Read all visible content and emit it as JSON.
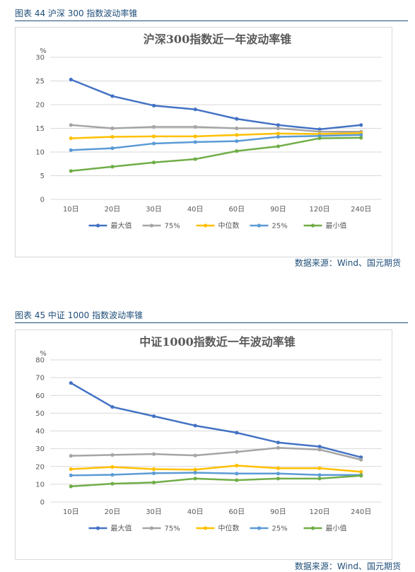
{
  "figures": [
    {
      "caption": "图表 44  沪深 300 指数波动率锥",
      "source": "数据来源：Wind、国元期货",
      "chart_data": {
        "type": "line",
        "title": "沪深300指数近一年波动率锥",
        "ylabel": "%",
        "xlabel": "",
        "categories": [
          "10日",
          "20日",
          "30日",
          "40日",
          "60日",
          "90日",
          "120日",
          "240日"
        ],
        "ylim": [
          0,
          30
        ],
        "yticks": [
          0,
          5,
          10,
          15,
          20,
          25,
          30
        ],
        "grid": true,
        "legend_position": "bottom",
        "series": [
          {
            "name": "最大值",
            "color": "#4472c4",
            "values": [
              25.3,
              21.8,
              19.8,
              19.0,
              17.0,
              15.7,
              14.8,
              15.7
            ]
          },
          {
            "name": "75%",
            "color": "#a5a5a5",
            "values": [
              15.7,
              15.0,
              15.3,
              15.3,
              15.0,
              15.0,
              14.3,
              14.3
            ]
          },
          {
            "name": "中位数",
            "color": "#ffc000",
            "values": [
              12.9,
              13.2,
              13.3,
              13.3,
              13.6,
              13.9,
              13.8,
              14.0
            ]
          },
          {
            "name": "25%",
            "color": "#5b9bd5",
            "values": [
              10.4,
              10.8,
              11.8,
              12.1,
              12.3,
              13.2,
              13.4,
              13.6
            ]
          },
          {
            "name": "最小值",
            "color": "#70ad47",
            "values": [
              6.0,
              6.9,
              7.8,
              8.5,
              10.2,
              11.2,
              12.9,
              13.0
            ]
          }
        ]
      }
    },
    {
      "caption": "图表 45  中证 1000 指数波动率锥",
      "source": "数据来源：Wind、国元期货",
      "chart_data": {
        "type": "line",
        "title": "中证1000指数近一年波动率锥",
        "ylabel": "%",
        "xlabel": "",
        "categories": [
          "10日",
          "20日",
          "30日",
          "40日",
          "60日",
          "90日",
          "120日",
          "240日"
        ],
        "ylim": [
          0,
          80
        ],
        "yticks": [
          0,
          10,
          20,
          30,
          40,
          50,
          60,
          70,
          80
        ],
        "grid": true,
        "legend_position": "bottom",
        "series": [
          {
            "name": "最大值",
            "color": "#4472c4",
            "values": [
              67.0,
              53.5,
              48.3,
              43.0,
              39.0,
              33.5,
              31.2,
              25.2
            ]
          },
          {
            "name": "75%",
            "color": "#a5a5a5",
            "values": [
              26.0,
              26.5,
              27.0,
              26.2,
              28.2,
              30.5,
              29.5,
              23.8
            ]
          },
          {
            "name": "中位数",
            "color": "#ffc000",
            "values": [
              18.5,
              19.7,
              18.5,
              18.2,
              20.5,
              19.0,
              19.0,
              17.0
            ]
          },
          {
            "name": "25%",
            "color": "#5b9bd5",
            "values": [
              15.0,
              15.3,
              16.2,
              16.5,
              16.0,
              16.0,
              15.2,
              15.2
            ]
          },
          {
            "name": "最小值",
            "color": "#70ad47",
            "values": [
              8.8,
              10.3,
              11.0,
              13.2,
              12.3,
              13.2,
              13.2,
              14.8
            ]
          }
        ]
      }
    }
  ]
}
